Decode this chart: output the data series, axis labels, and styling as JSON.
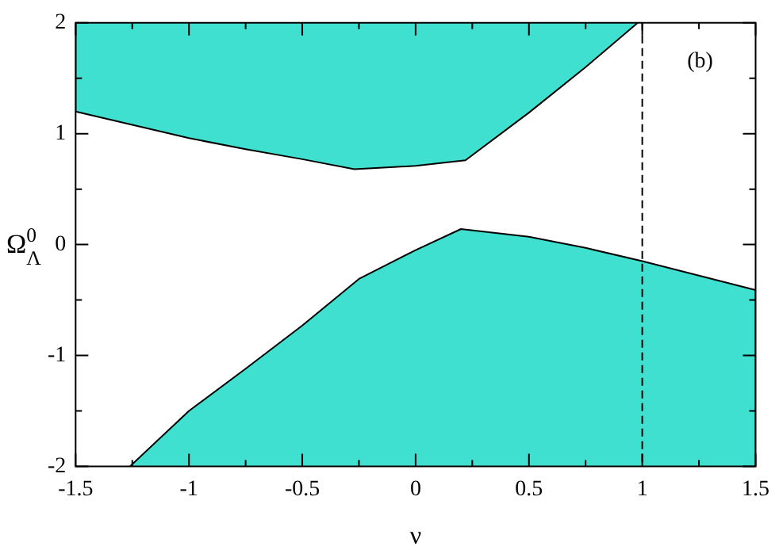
{
  "chart_data": {
    "type": "area",
    "xlabel": "ν",
    "ylabel": "Ω$^{0}$$_{Λ}$",
    "xlim": [
      -1.5,
      1.5
    ],
    "ylim": [
      -2,
      2
    ],
    "xticks": [
      -1.5,
      {
        "value": -1.25,
        "label": null
      },
      -1,
      {
        "value": -0.75,
        "label": null
      },
      -0.5,
      {
        "value": -0.25,
        "label": null
      },
      0,
      {
        "value": 0.25,
        "label": null
      },
      0.5,
      {
        "value": 0.75,
        "label": null
      },
      1,
      {
        "value": 1.25,
        "label": null
      },
      1.5
    ],
    "yticks": [
      -2,
      {
        "value": -1.5,
        "label": null
      },
      -1,
      {
        "value": -0.5,
        "label": null
      },
      0,
      {
        "value": 0.5,
        "label": null
      },
      1,
      {
        "value": 1.5,
        "label": null
      },
      2
    ],
    "series": [
      {
        "color": "#40e0d0",
        "x": [
          -1.5,
          -1.5,
          -1.25,
          -1,
          -0.75,
          -0.5,
          -0.27,
          0,
          0.22,
          0.5,
          0.75,
          0.98
        ],
        "values": [
          2,
          1.2,
          1.08,
          0.96,
          0.86,
          0.77,
          0.68,
          0.71,
          0.76,
          1.19,
          1.6,
          2
        ]
      },
      {
        "color": "#40e0d0",
        "x": [
          -1.26,
          -1,
          -0.75,
          -0.5,
          -0.25,
          0,
          0.2,
          0.5,
          0.75,
          1,
          1.25,
          1.5,
          1.5
        ],
        "values": [
          -2,
          -1.5,
          -1.12,
          -0.73,
          -0.31,
          -0.05,
          0.14,
          0.07,
          -0.03,
          -0.15,
          -0.28,
          -0.41,
          -2
        ]
      }
    ],
    "ref_lines": [
      {
        "axis": "x",
        "value": 1,
        "color": "#000000",
        "line_style": "dashed"
      }
    ],
    "annotations": [
      "(b)"
    ],
    "grid": false,
    "legend": false
  }
}
